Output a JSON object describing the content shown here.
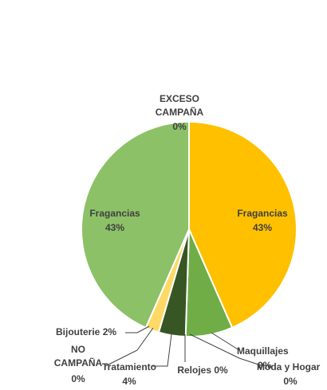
{
  "chart_data": {
    "type": "pie",
    "title": "",
    "slices": [
      {
        "name": "EXCESO CAMPAÑA",
        "value": 0,
        "pct_label": "0%",
        "color": "#c9c9c9"
      },
      {
        "name": "Fragancias",
        "value": 43,
        "pct_label": "43%",
        "color": "#ffc000"
      },
      {
        "name": "Maquillajes",
        "value": 7,
        "pct_label": "",
        "color": "#70ad47"
      },
      {
        "name": "Moda y Hogar",
        "value": 0,
        "pct_label": "0%",
        "color": "#a9d18e"
      },
      {
        "name": "Relojes",
        "value": 0,
        "pct_label": "0%",
        "color": "#548235"
      },
      {
        "name": "Tratamiento",
        "value": 4,
        "pct_label": "4%",
        "color": "#375623"
      },
      {
        "name": "NO CAMPAÑA",
        "value": 0,
        "pct_label": "0%",
        "color": "#e2e2e2"
      },
      {
        "name": "Bijouterie",
        "value": 2,
        "pct_label": "2%",
        "color": "#ffd966"
      },
      {
        "name": "Fragancias",
        "value": 43,
        "pct_label": "43%",
        "color": "#8cc168"
      }
    ],
    "overlap_label": "0%",
    "legend": "none"
  }
}
